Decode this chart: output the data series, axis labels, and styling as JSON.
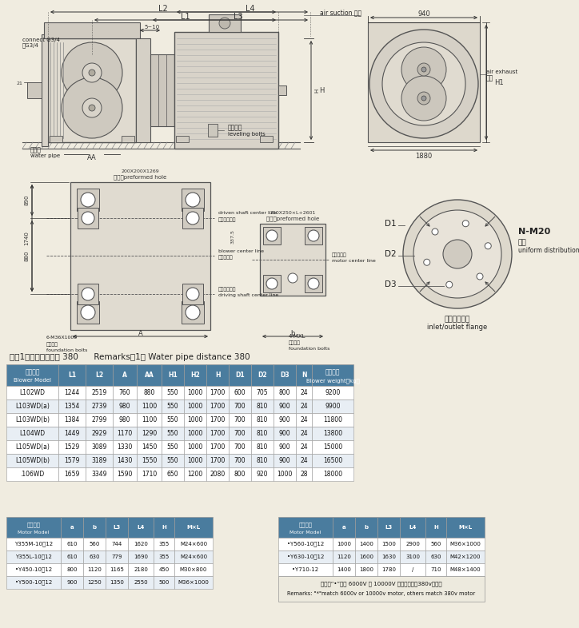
{
  "bg_color": "#f0ece0",
  "blower_header": [
    "风机型号\nBlower Model",
    "L1",
    "L2",
    "A",
    "AA",
    "H1",
    "H2",
    "H",
    "D1",
    "D2",
    "D3",
    "N",
    "主机重量\nBlower weight（kg）"
  ],
  "blower_data": [
    [
      "L102WD",
      "1244",
      "2519",
      "760",
      "880",
      "550",
      "1000",
      "1700",
      "600",
      "705",
      "800",
      "24",
      "9200"
    ],
    [
      "L103WD(a)",
      "1354",
      "2739",
      "980",
      "1100",
      "550",
      "1000",
      "1700",
      "700",
      "810",
      "900",
      "24",
      "9900"
    ],
    [
      "L103WD(b)",
      "1384",
      "2799",
      "980",
      "1100",
      "550",
      "1000",
      "1700",
      "700",
      "810",
      "900",
      "24",
      "11800"
    ],
    [
      "L104WD",
      "1449",
      "2929",
      "1170",
      "1290",
      "550",
      "1000",
      "1700",
      "700",
      "810",
      "900",
      "24",
      "13800"
    ],
    [
      "L105WD(a)",
      "1529",
      "3089",
      "1330",
      "1450",
      "550",
      "1000",
      "1700",
      "700",
      "810",
      "900",
      "24",
      "15000"
    ],
    [
      "L105WD(b)",
      "1579",
      "3189",
      "1430",
      "1550",
      "550",
      "1000",
      "1700",
      "700",
      "810",
      "900",
      "24",
      "16500"
    ],
    [
      ".106WD",
      "1659",
      "3349",
      "1590",
      "1710",
      "650",
      "1200",
      "2080",
      "800",
      "920",
      "1000",
      "28",
      "18000"
    ]
  ],
  "motor_header": [
    "电机型号\nMotor Model",
    "a",
    "b",
    "L3",
    "L4",
    "H",
    "M×L"
  ],
  "motor_data_left": [
    [
      "Y355M-10，12",
      "610",
      "560",
      "744",
      "1620",
      "355",
      "M24×600"
    ],
    [
      "Y355L-10，12",
      "610",
      "630",
      "779",
      "1690",
      "355",
      "M24×600"
    ],
    [
      "•Y450-10，12",
      "800",
      "1120",
      "1165",
      "2180",
      "450",
      "M30×800"
    ],
    [
      "•Y500-10，12",
      "900",
      "1250",
      "1350",
      "2550",
      "500",
      "M36×1000"
    ]
  ],
  "motor_data_right": [
    [
      "•Y560-10，12",
      "1000",
      "1400",
      "1500",
      "2900",
      "560",
      "M36×1000"
    ],
    [
      "•Y630-10，12",
      "1120",
      "1600",
      "1630",
      "3100",
      "630",
      "M42×1200"
    ],
    [
      "•Y710-12",
      "1400",
      "1800",
      "1780",
      "/",
      "710",
      "M48×1400"
    ]
  ],
  "motor_note_cn": "注：带“•”选用 6000V 或 10000V 电机，其余为380v电机。",
  "motor_note_en": "Remarks: \"*\"match 6000v or 10000v motor, others match 380v motor",
  "remark": "注：1、输水管间距为 380      Remarks，1、 Water pipe distance 380",
  "header_bg": "#4a7c9e",
  "header_fg": "#ffffff",
  "row_bg1": "#ffffff",
  "row_bg2": "#e8eef4",
  "border": "#999999",
  "line_color": "#555555",
  "dim_color": "#333333"
}
